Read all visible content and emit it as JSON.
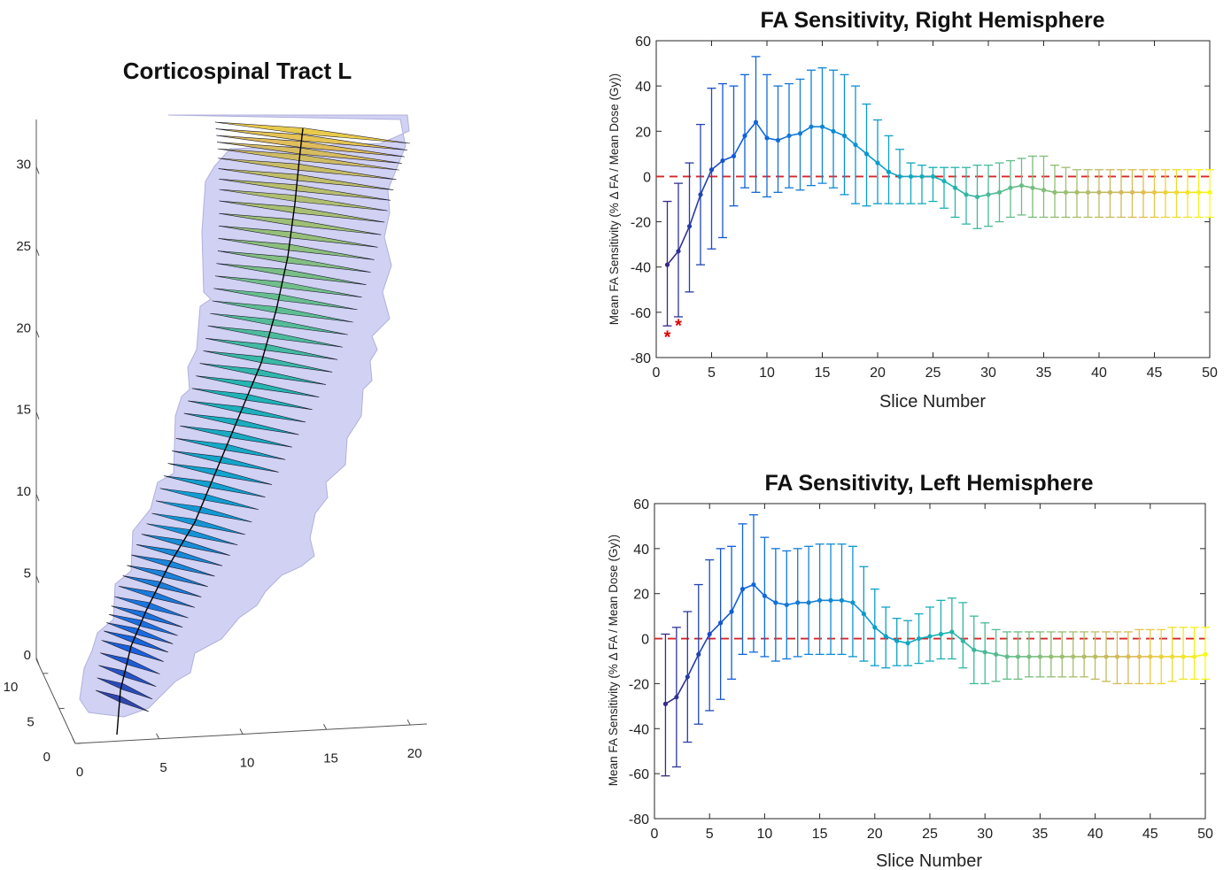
{
  "chart_data": [
    {
      "type": "3d-surface",
      "title": "Corticospinal Tract L",
      "z_ticks": [
        "0",
        "5",
        "10",
        "15",
        "20",
        "25",
        "30"
      ],
      "x_ticks": [
        "0",
        "5",
        "10",
        "15",
        "20"
      ],
      "y_ticks": [
        "0",
        "5",
        "10"
      ],
      "zlim": [
        0,
        33
      ],
      "xlim": [
        0,
        21
      ],
      "ylim": [
        0,
        12
      ],
      "colors": {
        "hull": "#c9c9f2",
        "path": "#000000"
      }
    },
    {
      "type": "line",
      "title": "FA Sensitivity, Right Hemisphere",
      "xlabel": "Slice Number",
      "ylabel": "Mean FA Sensitivity (% Δ FA / Mean Dose (Gy))",
      "xlim": [
        0,
        50
      ],
      "ylim": [
        -80,
        60
      ],
      "x_ticks": [
        "0",
        "5",
        "10",
        "15",
        "20",
        "25",
        "30",
        "35",
        "40",
        "45",
        "50"
      ],
      "y_ticks": [
        "-80",
        "-60",
        "-40",
        "-20",
        "0",
        "20",
        "40",
        "60"
      ],
      "reference_line": {
        "y": 0,
        "color": "#d62728",
        "style": "dashed"
      },
      "significance_markers": [
        {
          "x": 1,
          "y": -70
        },
        {
          "x": 2,
          "y": -65
        }
      ],
      "series": [
        {
          "x": [
            1,
            2,
            3,
            4,
            5,
            6,
            7,
            8,
            9,
            10,
            11,
            12,
            13,
            14,
            15,
            16,
            17,
            18,
            19,
            20,
            21,
            22,
            23,
            24,
            25,
            26,
            27,
            28,
            29,
            30,
            31,
            32,
            33,
            34,
            35,
            36,
            37,
            38,
            39,
            40,
            41,
            42,
            43,
            44,
            45,
            46,
            47,
            48,
            49,
            50
          ],
          "values": [
            -39,
            -33,
            -22,
            -8,
            3,
            7,
            9,
            18,
            24,
            17,
            16,
            18,
            19,
            22,
            22,
            20,
            18,
            14,
            10,
            6,
            2,
            0,
            0,
            0,
            0,
            -2,
            -5,
            -8,
            -9,
            -8,
            -7,
            -5,
            -4,
            -5,
            -6,
            -7,
            -7,
            -7,
            -7,
            -7,
            -7,
            -7,
            -7,
            -7,
            -7,
            -7,
            -7,
            -7,
            -7,
            -7
          ],
          "lower": [
            -66,
            -62,
            -51,
            -39,
            -32,
            -27,
            -13,
            -5,
            -7,
            -9,
            -7,
            -5,
            -6,
            -4,
            -3,
            -5,
            -8,
            -12,
            -13,
            -12,
            -12,
            -12,
            -12,
            -12,
            -11,
            -14,
            -18,
            -21,
            -23,
            -22,
            -20,
            -18,
            -17,
            -18,
            -18,
            -18,
            -18,
            -18,
            -18,
            -18,
            -18,
            -18,
            -18,
            -18,
            -18,
            -18,
            -18,
            -18,
            -18,
            -18
          ],
          "upper": [
            -11,
            -3,
            6,
            23,
            39,
            41,
            40,
            45,
            53,
            45,
            40,
            41,
            43,
            47,
            48,
            47,
            45,
            40,
            32,
            25,
            18,
            12,
            6,
            5,
            4,
            4,
            4,
            4,
            5,
            5,
            6,
            7,
            8,
            9,
            9,
            5,
            4,
            3,
            3,
            3,
            3,
            3,
            3,
            3,
            3,
            3,
            3,
            3,
            3,
            3
          ]
        }
      ]
    },
    {
      "type": "line",
      "title": "FA Sensitivity, Left Hemisphere",
      "xlabel": "Slice Number",
      "ylabel": "Mean FA Sensitivity (% Δ FA / Mean Dose (Gy))",
      "xlim": [
        0,
        50
      ],
      "ylim": [
        -80,
        60
      ],
      "x_ticks": [
        "0",
        "5",
        "10",
        "15",
        "20",
        "25",
        "30",
        "35",
        "40",
        "45",
        "50"
      ],
      "y_ticks": [
        "-80",
        "-60",
        "-40",
        "-20",
        "0",
        "20",
        "40",
        "60"
      ],
      "reference_line": {
        "y": 0,
        "color": "#d62728",
        "style": "dashed"
      },
      "series": [
        {
          "x": [
            1,
            2,
            3,
            4,
            5,
            6,
            7,
            8,
            9,
            10,
            11,
            12,
            13,
            14,
            15,
            16,
            17,
            18,
            19,
            20,
            21,
            22,
            23,
            24,
            25,
            26,
            27,
            28,
            29,
            30,
            31,
            32,
            33,
            34,
            35,
            36,
            37,
            38,
            39,
            40,
            41,
            42,
            43,
            44,
            45,
            46,
            47,
            48,
            49,
            50
          ],
          "values": [
            -29,
            -26,
            -17,
            -7,
            2,
            7,
            12,
            22,
            24,
            19,
            16,
            15,
            16,
            16,
            17,
            17,
            17,
            16,
            11,
            5,
            1,
            -1,
            -2,
            0,
            1,
            2,
            3,
            -1,
            -5,
            -6,
            -7,
            -8,
            -8,
            -8,
            -8,
            -8,
            -8,
            -8,
            -8,
            -8,
            -8,
            -8,
            -8,
            -8,
            -8,
            -8,
            -8,
            -8,
            -8,
            -7
          ],
          "lower": [
            -61,
            -57,
            -46,
            -38,
            -32,
            -27,
            -18,
            -7,
            -6,
            -8,
            -10,
            -9,
            -8,
            -7,
            -7,
            -7,
            -7,
            -8,
            -10,
            -12,
            -13,
            -12,
            -12,
            -11,
            -10,
            -9,
            -9,
            -13,
            -20,
            -20,
            -19,
            -18,
            -18,
            -17,
            -17,
            -17,
            -17,
            -17,
            -17,
            -18,
            -19,
            -20,
            -20,
            -20,
            -20,
            -20,
            -19,
            -18,
            -18,
            -18
          ],
          "upper": [
            2,
            5,
            12,
            24,
            35,
            40,
            41,
            51,
            55,
            45,
            40,
            39,
            40,
            41,
            42,
            42,
            42,
            41,
            32,
            22,
            14,
            9,
            8,
            11,
            14,
            17,
            18,
            16,
            10,
            7,
            4,
            3,
            3,
            3,
            3,
            3,
            3,
            3,
            3,
            3,
            3,
            3,
            3,
            4,
            4,
            4,
            5,
            5,
            5,
            5
          ]
        }
      ]
    }
  ]
}
